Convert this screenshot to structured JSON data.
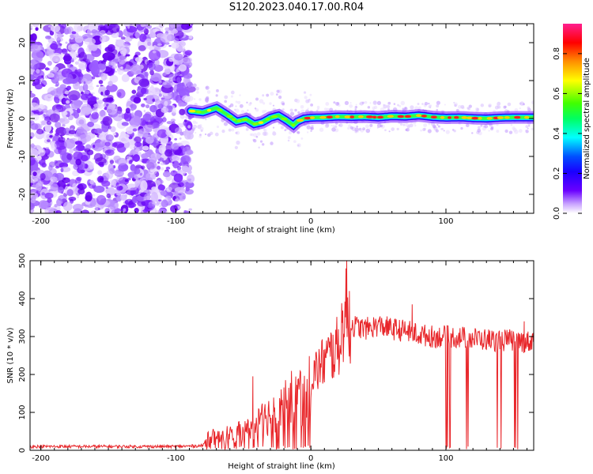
{
  "title": "S120.2023.040.17.00.R04",
  "chart_data": [
    {
      "type": "heatmap",
      "xlabel": "Height of straight line (km)",
      "ylabel": "Frequency (Hz)",
      "xlim": [
        -208,
        165
      ],
      "ylim": [
        -25,
        25
      ],
      "xticks": [
        -200,
        -100,
        0,
        100
      ],
      "yticks": [
        -20,
        -10,
        0,
        10,
        20
      ],
      "noise_region": [
        -208,
        -89
      ],
      "ridge": {
        "x": [
          -89,
          -80,
          -70,
          -62,
          -55,
          -48,
          -42,
          -36,
          -30,
          -24,
          -18,
          -13,
          -10,
          -5,
          0,
          10,
          20,
          30,
          40,
          50,
          60,
          70,
          80,
          90,
          100,
          110,
          120,
          130,
          140,
          150,
          165
        ],
        "y": [
          2.0,
          1.6,
          2.8,
          1.0,
          -0.8,
          -0.2,
          -1.5,
          -1.0,
          0.2,
          0.8,
          -0.5,
          -1.8,
          -0.8,
          0.0,
          0.2,
          0.3,
          0.5,
          0.4,
          0.5,
          0.3,
          0.6,
          0.5,
          0.8,
          0.4,
          0.2,
          0.3,
          0.1,
          0.0,
          0.2,
          0.3,
          0.3
        ]
      },
      "colorbar": {
        "label": "Normalized spectral amplitude",
        "range": [
          0,
          0.95
        ],
        "ticks": [
          0.0,
          0.2,
          0.4,
          0.6,
          0.8
        ]
      }
    },
    {
      "type": "line",
      "xlabel": "Height of straight line (km)",
      "ylabel": "SNR (10 * v/v)",
      "xlim": [
        -208,
        165
      ],
      "ylim": [
        0,
        500
      ],
      "xticks": [
        -200,
        -100,
        0,
        100
      ],
      "yticks": [
        0,
        100,
        200,
        300,
        400,
        500
      ],
      "series": [
        {
          "color": "#e8262a",
          "envelope": {
            "x": [
              -208,
              -150,
              -100,
              -80,
              -75,
              -70,
              -60,
              -50,
              -40,
              -30,
              -20,
              -10,
              0,
              10,
              20,
              26,
              30,
              40,
              50,
              60,
              70,
              80,
              90,
              100,
              110,
              120,
              130,
              140,
              150,
              160,
              165
            ],
            "y": [
              10,
              10,
              10,
              12,
              55,
              40,
              60,
              65,
              90,
              130,
              165,
              190,
              220,
              270,
              310,
              420,
              330,
              320,
              330,
              320,
              315,
              305,
              300,
              300,
              298,
              295,
              292,
              290,
              290,
              285,
              290
            ]
          },
          "peaks": [
            {
              "x": 26.5,
              "y": 500
            },
            {
              "x": 28.5,
              "y": 420
            },
            {
              "x": -43,
              "y": 195
            },
            {
              "x": 75,
              "y": 385
            },
            {
              "x": 158,
              "y": 340
            }
          ],
          "dropout_range": [
            75,
            165
          ]
        }
      ]
    }
  ]
}
